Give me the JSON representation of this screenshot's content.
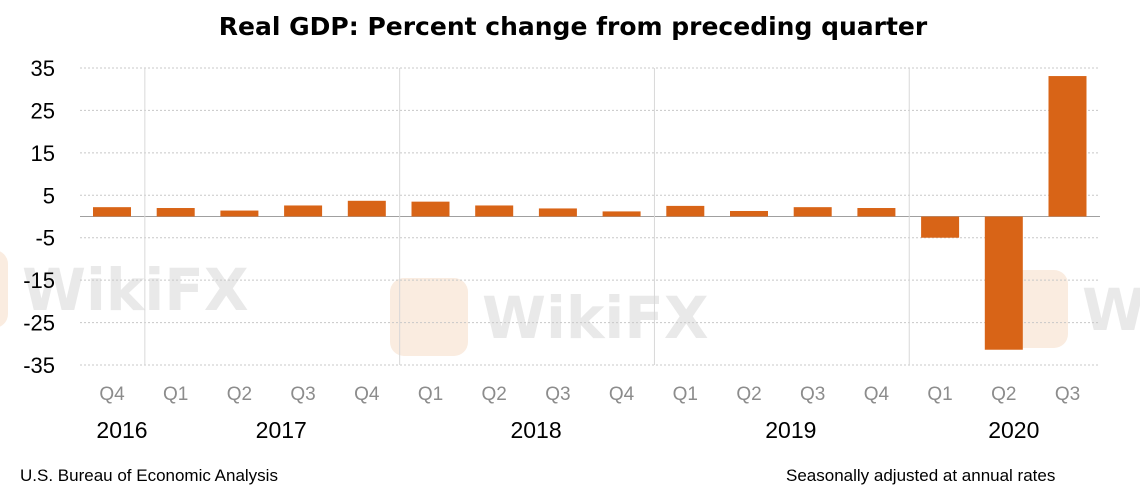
{
  "chart_data": {
    "type": "bar",
    "title": "Real GDP:  Percent change from preceding quarter",
    "categories": [
      "Q4",
      "Q1",
      "Q2",
      "Q3",
      "Q4",
      "Q1",
      "Q2",
      "Q3",
      "Q4",
      "Q1",
      "Q2",
      "Q3",
      "Q4",
      "Q1",
      "Q2",
      "Q3"
    ],
    "years": [
      {
        "label": "2016",
        "start": 0,
        "end": 0
      },
      {
        "label": "2017",
        "start": 1,
        "end": 4
      },
      {
        "label": "2018",
        "start": 5,
        "end": 8
      },
      {
        "label": "2019",
        "start": 9,
        "end": 12
      },
      {
        "label": "2020",
        "start": 13,
        "end": 15
      }
    ],
    "values": [
      2.2,
      2.0,
      1.4,
      2.6,
      3.7,
      3.5,
      2.6,
      1.9,
      1.2,
      2.5,
      1.3,
      2.2,
      2.0,
      -5.0,
      -31.4,
      33.1
    ],
    "yticks": [
      35,
      25,
      15,
      5,
      -5,
      -15,
      -25,
      -35
    ],
    "ylim": [
      -35,
      35
    ],
    "grid": true,
    "bar_color": "#d86417",
    "xlabel": "",
    "ylabel": ""
  },
  "footer": {
    "source": "U.S. Bureau of Economic Analysis",
    "note": "Seasonally adjusted at annual rates"
  },
  "watermark": {
    "text": "WikiFX"
  }
}
